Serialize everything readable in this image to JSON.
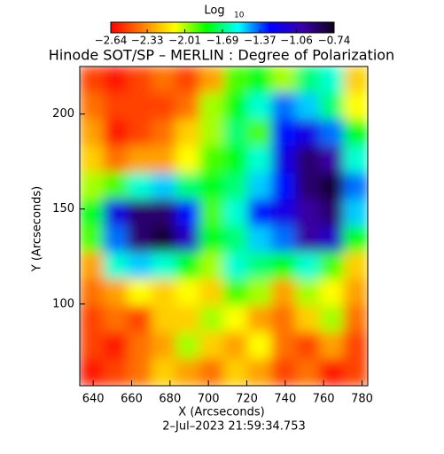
{
  "chart_data": {
    "type": "heatmap",
    "title": "Hinode SOT/SP – MERLIN : Degree of Polarization",
    "colorbar_label": "Log",
    "colorbar_label_sub": "10",
    "x_label": "X (Arcseconds)",
    "y_label": "Y (Arcseconds)",
    "footer": "2–Jul–2023 21:59:34.753",
    "colormap": [
      "#ff0000",
      "#ff8000",
      "#ffff00",
      "#00ff00",
      "#00ffff",
      "#0000ff",
      "#3a00a8",
      "#100018"
    ],
    "xlim": [
      633,
      783
    ],
    "ylim": [
      57,
      225
    ],
    "xticks": [
      640,
      660,
      680,
      700,
      720,
      740,
      760,
      780
    ],
    "yticks": [
      100,
      150,
      200
    ],
    "cticks": [
      {
        "value": -2.64,
        "label": "−2.64"
      },
      {
        "value": -2.33,
        "label": "−2.33"
      },
      {
        "value": -2.01,
        "label": "−2.01"
      },
      {
        "value": -1.69,
        "label": "−1.69"
      },
      {
        "value": -1.37,
        "label": "−1.37"
      },
      {
        "value": -1.06,
        "label": "−1.06"
      },
      {
        "value": -0.74,
        "label": "−0.74"
      }
    ],
    "x": [
      639.25,
      651.75,
      664.25,
      676.75,
      689.25,
      701.75,
      714.25,
      726.75,
      739.25,
      751.75,
      764.25,
      776.75
    ],
    "y": [
      218,
      204,
      190,
      176,
      162,
      148,
      134,
      120,
      106,
      92,
      78,
      64
    ],
    "z": [
      [
        -2.5,
        -2.6,
        -2.5,
        -2.4,
        -2.5,
        -2.3,
        -1.9,
        -1.8,
        -2.0,
        -1.7,
        -1.6,
        -2.2
      ],
      [
        -2.4,
        -2.5,
        -2.5,
        -2.5,
        -2.4,
        -2.0,
        -1.8,
        -1.6,
        -1.4,
        -1.5,
        -1.7,
        -2.1
      ],
      [
        -2.3,
        -2.6,
        -2.5,
        -2.4,
        -2.2,
        -2.0,
        -1.7,
        -1.9,
        -1.3,
        -1.2,
        -1.4,
        -1.8
      ],
      [
        -2.2,
        -2.4,
        -2.3,
        -2.3,
        -2.1,
        -1.9,
        -1.8,
        -1.6,
        -1.2,
        -0.9,
        -1.0,
        -1.6
      ],
      [
        -2.0,
        -1.9,
        -1.6,
        -1.5,
        -1.7,
        -1.8,
        -1.7,
        -1.5,
        -1.3,
        -0.9,
        -0.8,
        -1.4
      ],
      [
        -1.8,
        -1.2,
        -0.9,
        -0.9,
        -1.3,
        -1.9,
        -1.6,
        -1.3,
        -1.2,
        -1.0,
        -0.9,
        -1.5
      ],
      [
        -1.9,
        -1.4,
        -0.9,
        -0.8,
        -1.1,
        -1.8,
        -1.7,
        -1.5,
        -1.4,
        -1.0,
        -1.1,
        -1.8
      ],
      [
        -2.3,
        -1.6,
        -1.5,
        -1.6,
        -1.8,
        -2.0,
        -1.6,
        -1.7,
        -1.8,
        -1.6,
        -1.9,
        -2.2
      ],
      [
        -2.4,
        -2.3,
        -2.1,
        -2.2,
        -2.1,
        -2.2,
        -1.9,
        -2.0,
        -2.3,
        -2.0,
        -2.1,
        -2.3
      ],
      [
        -2.5,
        -2.4,
        -2.5,
        -2.2,
        -2.2,
        -2.0,
        -2.1,
        -2.3,
        -2.4,
        -2.2,
        -2.0,
        -2.4
      ],
      [
        -2.5,
        -2.6,
        -2.4,
        -2.3,
        -2.0,
        -2.2,
        -2.3,
        -2.1,
        -2.4,
        -2.5,
        -2.3,
        -2.5
      ],
      [
        -2.6,
        -2.5,
        -2.4,
        -2.2,
        -2.3,
        -2.4,
        -2.2,
        -2.3,
        -2.5,
        -2.4,
        -2.6,
        -2.5
      ]
    ]
  }
}
